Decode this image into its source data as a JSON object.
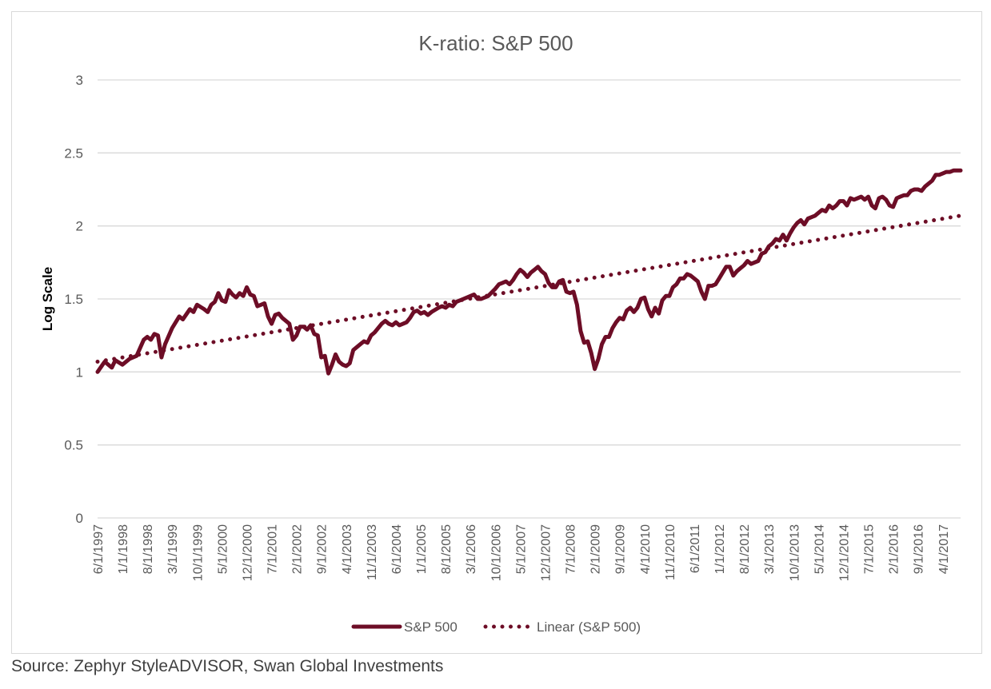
{
  "source_note": "Source: Zephyr StyleADVISOR, Swan Global Investments",
  "colors": {
    "series": "#6d0d26",
    "grid": "#d9d9d9",
    "text": "#595959",
    "axis_title": "#000000"
  },
  "chart_data": {
    "type": "line",
    "title": "K-ratio: S&P 500",
    "xlabel": "",
    "ylabel": "Log Scale",
    "ylim": [
      0,
      3
    ],
    "yticks": [
      0,
      0.5,
      1,
      1.5,
      2,
      2.5,
      3
    ],
    "grid": true,
    "legend_position": "bottom",
    "x_start": "6/1/1997",
    "x_end": "9/1/2017",
    "x_tick_labels": [
      "6/1/1997",
      "1/1/1998",
      "8/1/1998",
      "3/1/1999",
      "10/1/1999",
      "5/1/2000",
      "12/1/2000",
      "7/1/2001",
      "2/1/2002",
      "9/1/2002",
      "4/1/2003",
      "11/1/2003",
      "6/1/2004",
      "1/1/2005",
      "8/1/2005",
      "3/1/2006",
      "10/1/2006",
      "5/1/2007",
      "12/1/2007",
      "7/1/2008",
      "2/1/2009",
      "9/1/2009",
      "4/1/2010",
      "11/1/2010",
      "6/1/2011",
      "1/1/2012",
      "8/1/2012",
      "3/1/2013",
      "10/1/2013",
      "5/1/2014",
      "12/1/2014",
      "7/1/2015",
      "2/1/2016",
      "9/1/2016",
      "4/1/2017"
    ],
    "series": [
      {
        "name": "S&P 500",
        "style": "solid",
        "points": [
          [
            "6/1/1997",
            1.0
          ],
          [
            "8/1/1997",
            1.07
          ],
          [
            "10/1/1997",
            1.03
          ],
          [
            "11/1/1997",
            1.08
          ],
          [
            "1/1/1998",
            1.05
          ],
          [
            "3/1/1998",
            1.09
          ],
          [
            "5/1/1998",
            1.11
          ],
          [
            "7/1/1998",
            1.22
          ],
          [
            "8/1/1998",
            1.24
          ],
          [
            "9/1/1998",
            1.22
          ],
          [
            "10/1/1998",
            1.26
          ],
          [
            "11/1/1998",
            1.25
          ],
          [
            "12/1/1998",
            1.1
          ],
          [
            "1/1/1999",
            1.19
          ],
          [
            "3/1/1999",
            1.3
          ],
          [
            "5/1/1999",
            1.38
          ],
          [
            "6/1/1999",
            1.36
          ],
          [
            "8/1/1999",
            1.43
          ],
          [
            "9/1/1999",
            1.41
          ],
          [
            "10/1/1999",
            1.46
          ],
          [
            "12/1/1999",
            1.43
          ],
          [
            "1/1/2000",
            1.41
          ],
          [
            "2/1/2000",
            1.46
          ],
          [
            "3/1/2000",
            1.48
          ],
          [
            "4/1/2000",
            1.54
          ],
          [
            "5/1/2000",
            1.49
          ],
          [
            "6/1/2000",
            1.48
          ],
          [
            "7/1/2000",
            1.56
          ],
          [
            "8/1/2000",
            1.53
          ],
          [
            "9/1/2000",
            1.51
          ],
          [
            "10/1/2000",
            1.54
          ],
          [
            "11/1/2000",
            1.52
          ],
          [
            "12/1/2000",
            1.58
          ],
          [
            "1/1/2001",
            1.53
          ],
          [
            "2/1/2001",
            1.52
          ],
          [
            "3/1/2001",
            1.45
          ],
          [
            "4/1/2001",
            1.46
          ],
          [
            "5/1/2001",
            1.47
          ],
          [
            "6/1/2001",
            1.38
          ],
          [
            "7/1/2001",
            1.33
          ],
          [
            "8/1/2001",
            1.39
          ],
          [
            "9/1/2001",
            1.4
          ],
          [
            "10/1/2001",
            1.37
          ],
          [
            "12/1/2001",
            1.33
          ],
          [
            "1/1/2002",
            1.22
          ],
          [
            "2/1/2002",
            1.25
          ],
          [
            "3/1/2002",
            1.31
          ],
          [
            "4/1/2002",
            1.31
          ],
          [
            "5/1/2002",
            1.29
          ],
          [
            "6/1/2002",
            1.32
          ],
          [
            "7/1/2002",
            1.26
          ],
          [
            "8/1/2002",
            1.25
          ],
          [
            "9/1/2002",
            1.1
          ],
          [
            "10/1/2002",
            1.11
          ],
          [
            "11/1/2002",
            0.99
          ],
          [
            "12/1/2002",
            1.05
          ],
          [
            "1/1/2003",
            1.12
          ],
          [
            "2/1/2003",
            1.07
          ],
          [
            "3/1/2003",
            1.05
          ],
          [
            "4/1/2003",
            1.04
          ],
          [
            "5/1/2003",
            1.06
          ],
          [
            "6/1/2003",
            1.15
          ],
          [
            "8/1/2003",
            1.19
          ],
          [
            "9/1/2003",
            1.21
          ],
          [
            "10/1/2003",
            1.2
          ],
          [
            "11/1/2003",
            1.25
          ],
          [
            "12/1/2003",
            1.27
          ],
          [
            "2/1/2004",
            1.33
          ],
          [
            "3/1/2004",
            1.35
          ],
          [
            "4/1/2004",
            1.33
          ],
          [
            "5/1/2004",
            1.32
          ],
          [
            "6/1/2004",
            1.34
          ],
          [
            "7/1/2004",
            1.32
          ],
          [
            "8/1/2004",
            1.33
          ],
          [
            "9/1/2004",
            1.34
          ],
          [
            "10/1/2004",
            1.37
          ],
          [
            "11/1/2004",
            1.41
          ],
          [
            "12/1/2004",
            1.42
          ],
          [
            "1/1/2005",
            1.4
          ],
          [
            "2/1/2005",
            1.41
          ],
          [
            "3/1/2005",
            1.39
          ],
          [
            "4/1/2005",
            1.41
          ],
          [
            "6/1/2005",
            1.44
          ],
          [
            "7/1/2005",
            1.45
          ],
          [
            "8/1/2005",
            1.44
          ],
          [
            "9/1/2005",
            1.46
          ],
          [
            "10/1/2005",
            1.45
          ],
          [
            "11/1/2005",
            1.48
          ],
          [
            "1/1/2006",
            1.5
          ],
          [
            "3/1/2006",
            1.52
          ],
          [
            "4/1/2006",
            1.53
          ],
          [
            "5/1/2006",
            1.5
          ],
          [
            "6/1/2006",
            1.5
          ],
          [
            "8/1/2006",
            1.52
          ],
          [
            "10/1/2006",
            1.57
          ],
          [
            "11/1/2006",
            1.6
          ],
          [
            "12/1/2006",
            1.61
          ],
          [
            "1/1/2007",
            1.62
          ],
          [
            "2/1/2007",
            1.6
          ],
          [
            "3/1/2007",
            1.63
          ],
          [
            "4/1/2007",
            1.67
          ],
          [
            "5/1/2007",
            1.7
          ],
          [
            "6/1/2007",
            1.68
          ],
          [
            "7/1/2007",
            1.65
          ],
          [
            "8/1/2007",
            1.68
          ],
          [
            "9/1/2007",
            1.7
          ],
          [
            "10/1/2007",
            1.72
          ],
          [
            "11/1/2007",
            1.69
          ],
          [
            "12/1/2007",
            1.67
          ],
          [
            "1/1/2008",
            1.61
          ],
          [
            "2/1/2008",
            1.58
          ],
          [
            "3/1/2008",
            1.58
          ],
          [
            "4/1/2008",
            1.62
          ],
          [
            "5/1/2008",
            1.63
          ],
          [
            "6/1/2008",
            1.55
          ],
          [
            "7/1/2008",
            1.54
          ],
          [
            "8/1/2008",
            1.55
          ],
          [
            "9/1/2008",
            1.46
          ],
          [
            "10/1/2008",
            1.28
          ],
          [
            "11/1/2008",
            1.2
          ],
          [
            "12/1/2008",
            1.21
          ],
          [
            "1/1/2009",
            1.13
          ],
          [
            "2/1/2009",
            1.02
          ],
          [
            "3/1/2009",
            1.09
          ],
          [
            "4/1/2009",
            1.19
          ],
          [
            "5/1/2009",
            1.24
          ],
          [
            "6/1/2009",
            1.24
          ],
          [
            "7/1/2009",
            1.3
          ],
          [
            "8/1/2009",
            1.34
          ],
          [
            "9/1/2009",
            1.37
          ],
          [
            "10/1/2009",
            1.36
          ],
          [
            "11/1/2009",
            1.42
          ],
          [
            "12/1/2009",
            1.44
          ],
          [
            "1/1/2010",
            1.41
          ],
          [
            "2/1/2010",
            1.44
          ],
          [
            "3/1/2010",
            1.5
          ],
          [
            "4/1/2010",
            1.51
          ],
          [
            "5/1/2010",
            1.43
          ],
          [
            "6/1/2010",
            1.38
          ],
          [
            "7/1/2010",
            1.44
          ],
          [
            "8/1/2010",
            1.4
          ],
          [
            "9/1/2010",
            1.49
          ],
          [
            "10/1/2010",
            1.52
          ],
          [
            "11/1/2010",
            1.52
          ],
          [
            "12/1/2010",
            1.58
          ],
          [
            "1/1/2011",
            1.6
          ],
          [
            "2/1/2011",
            1.64
          ],
          [
            "3/1/2011",
            1.64
          ],
          [
            "4/1/2011",
            1.67
          ],
          [
            "5/1/2011",
            1.66
          ],
          [
            "6/1/2011",
            1.64
          ],
          [
            "7/1/2011",
            1.62
          ],
          [
            "8/1/2011",
            1.55
          ],
          [
            "9/1/2011",
            1.5
          ],
          [
            "10/1/2011",
            1.59
          ],
          [
            "11/1/2011",
            1.59
          ],
          [
            "12/1/2011",
            1.6
          ],
          [
            "1/1/2012",
            1.64
          ],
          [
            "2/1/2012",
            1.68
          ],
          [
            "3/1/2012",
            1.72
          ],
          [
            "4/1/2012",
            1.72
          ],
          [
            "5/1/2012",
            1.66
          ],
          [
            "6/1/2012",
            1.69
          ],
          [
            "7/1/2012",
            1.71
          ],
          [
            "8/1/2012",
            1.73
          ],
          [
            "9/1/2012",
            1.76
          ],
          [
            "10/1/2012",
            1.74
          ],
          [
            "11/1/2012",
            1.75
          ],
          [
            "12/1/2012",
            1.76
          ],
          [
            "1/1/2013",
            1.81
          ],
          [
            "2/1/2013",
            1.82
          ],
          [
            "3/1/2013",
            1.86
          ],
          [
            "4/1/2013",
            1.88
          ],
          [
            "5/1/2013",
            1.91
          ],
          [
            "6/1/2013",
            1.9
          ],
          [
            "7/1/2013",
            1.94
          ],
          [
            "8/1/2013",
            1.9
          ],
          [
            "9/1/2013",
            1.95
          ],
          [
            "10/1/2013",
            1.99
          ],
          [
            "11/1/2013",
            2.02
          ],
          [
            "12/1/2013",
            2.04
          ],
          [
            "1/1/2014",
            2.01
          ],
          [
            "2/1/2014",
            2.05
          ],
          [
            "3/1/2014",
            2.06
          ],
          [
            "4/1/2014",
            2.07
          ],
          [
            "5/1/2014",
            2.09
          ],
          [
            "6/1/2014",
            2.11
          ],
          [
            "7/1/2014",
            2.1
          ],
          [
            "8/1/2014",
            2.14
          ],
          [
            "9/1/2014",
            2.12
          ],
          [
            "10/1/2014",
            2.14
          ],
          [
            "11/1/2014",
            2.17
          ],
          [
            "12/1/2014",
            2.17
          ],
          [
            "1/1/2015",
            2.14
          ],
          [
            "2/1/2015",
            2.19
          ],
          [
            "3/1/2015",
            2.18
          ],
          [
            "4/1/2015",
            2.19
          ],
          [
            "5/1/2015",
            2.2
          ],
          [
            "6/1/2015",
            2.18
          ],
          [
            "7/1/2015",
            2.2
          ],
          [
            "8/1/2015",
            2.14
          ],
          [
            "9/1/2015",
            2.12
          ],
          [
            "10/1/2015",
            2.19
          ],
          [
            "11/1/2015",
            2.2
          ],
          [
            "12/1/2015",
            2.18
          ],
          [
            "1/1/2016",
            2.14
          ],
          [
            "2/1/2016",
            2.13
          ],
          [
            "3/1/2016",
            2.19
          ],
          [
            "4/1/2016",
            2.2
          ],
          [
            "5/1/2016",
            2.21
          ],
          [
            "6/1/2016",
            2.21
          ],
          [
            "7/1/2016",
            2.24
          ],
          [
            "8/1/2016",
            2.25
          ],
          [
            "9/1/2016",
            2.25
          ],
          [
            "10/1/2016",
            2.24
          ],
          [
            "11/1/2016",
            2.27
          ],
          [
            "12/1/2016",
            2.29
          ],
          [
            "1/1/2017",
            2.31
          ],
          [
            "2/1/2017",
            2.35
          ],
          [
            "3/1/2017",
            2.35
          ],
          [
            "4/1/2017",
            2.36
          ],
          [
            "5/1/2017",
            2.37
          ],
          [
            "6/1/2017",
            2.37
          ],
          [
            "7/1/2017",
            2.38
          ],
          [
            "8/1/2017",
            2.38
          ],
          [
            "9/1/2017",
            2.38
          ]
        ]
      },
      {
        "name": "Linear (S&P 500)",
        "style": "dotted",
        "points": [
          [
            "6/1/1997",
            1.07
          ],
          [
            "9/1/2017",
            2.07
          ]
        ]
      }
    ]
  }
}
